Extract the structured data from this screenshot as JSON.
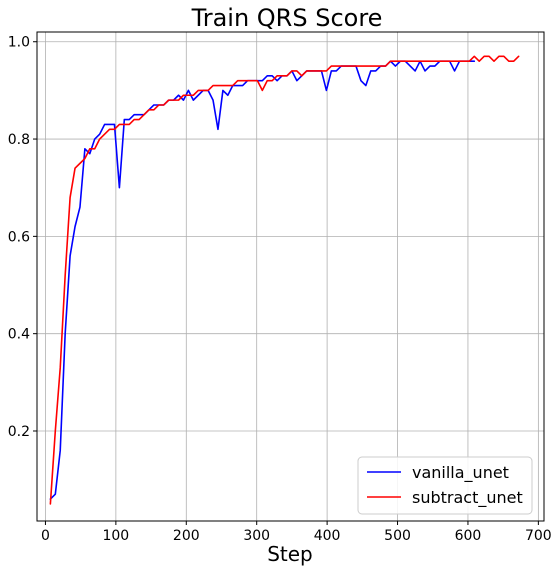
{
  "chart_data": {
    "type": "line",
    "title": "Train QRS Score",
    "xlabel": "Step",
    "ylabel": "",
    "xlim": [
      -12,
      708
    ],
    "ylim": [
      0.015,
      1.02
    ],
    "xticks": [
      0,
      100,
      200,
      300,
      400,
      500,
      600,
      700
    ],
    "yticks": [
      0.2,
      0.4,
      0.6,
      0.8,
      1.0
    ],
    "xtick_labels": [
      "0",
      "100",
      "200",
      "300",
      "400",
      "500",
      "600",
      "700"
    ],
    "ytick_labels": [
      "0.2",
      "0.4",
      "0.6",
      "0.8",
      "1.0"
    ],
    "grid": true,
    "legend_position": "lower-right",
    "series": [
      {
        "name": "vanilla_unet",
        "color": "#0000ff",
        "x": [
          7,
          14,
          21,
          28,
          35,
          42,
          49,
          56,
          63,
          70,
          77,
          84,
          91,
          98,
          105,
          112,
          119,
          126,
          133,
          140,
          147,
          154,
          161,
          168,
          175,
          182,
          189,
          196,
          203,
          210,
          217,
          224,
          231,
          238,
          245,
          252,
          259,
          266,
          273,
          280,
          287,
          294,
          301,
          308,
          315,
          322,
          329,
          336,
          343,
          350,
          357,
          364,
          371,
          378,
          385,
          392,
          399,
          406,
          413,
          420,
          427,
          434,
          441,
          448,
          455,
          462,
          469,
          476,
          483,
          490,
          497,
          504,
          511,
          518,
          525,
          532,
          539,
          546,
          553,
          560,
          567,
          574,
          581,
          588,
          595,
          602,
          609
        ],
        "y": [
          0.06,
          0.07,
          0.16,
          0.4,
          0.56,
          0.62,
          0.66,
          0.78,
          0.77,
          0.8,
          0.81,
          0.83,
          0.83,
          0.83,
          0.7,
          0.84,
          0.84,
          0.85,
          0.85,
          0.85,
          0.86,
          0.87,
          0.87,
          0.87,
          0.88,
          0.88,
          0.89,
          0.88,
          0.9,
          0.88,
          0.89,
          0.9,
          0.9,
          0.88,
          0.82,
          0.9,
          0.89,
          0.91,
          0.91,
          0.91,
          0.92,
          0.92,
          0.92,
          0.92,
          0.93,
          0.93,
          0.92,
          0.93,
          0.93,
          0.94,
          0.92,
          0.93,
          0.94,
          0.94,
          0.94,
          0.94,
          0.9,
          0.94,
          0.94,
          0.95,
          0.95,
          0.95,
          0.95,
          0.92,
          0.91,
          0.94,
          0.94,
          0.95,
          0.95,
          0.96,
          0.95,
          0.96,
          0.96,
          0.95,
          0.94,
          0.96,
          0.94,
          0.95,
          0.95,
          0.96,
          0.96,
          0.96,
          0.94,
          0.96,
          0.96,
          0.96,
          0.96
        ]
      },
      {
        "name": "subtract_unet",
        "color": "#ff0000",
        "x": [
          7,
          14,
          21,
          28,
          35,
          42,
          49,
          56,
          63,
          70,
          77,
          84,
          91,
          98,
          105,
          112,
          119,
          126,
          133,
          140,
          147,
          154,
          161,
          168,
          175,
          182,
          189,
          196,
          203,
          210,
          217,
          224,
          231,
          238,
          245,
          252,
          259,
          266,
          273,
          280,
          287,
          294,
          301,
          308,
          315,
          322,
          329,
          336,
          343,
          350,
          357,
          364,
          371,
          378,
          385,
          392,
          399,
          406,
          413,
          420,
          427,
          434,
          441,
          448,
          455,
          462,
          469,
          476,
          483,
          490,
          497,
          504,
          511,
          518,
          525,
          532,
          539,
          546,
          553,
          560,
          567,
          574,
          581,
          588,
          595,
          602,
          609,
          616,
          623,
          630,
          637,
          644,
          651,
          658,
          665,
          672
        ],
        "y": [
          0.05,
          0.2,
          0.33,
          0.52,
          0.68,
          0.74,
          0.75,
          0.76,
          0.78,
          0.78,
          0.8,
          0.81,
          0.82,
          0.82,
          0.83,
          0.83,
          0.83,
          0.84,
          0.84,
          0.85,
          0.86,
          0.86,
          0.87,
          0.87,
          0.88,
          0.88,
          0.88,
          0.89,
          0.89,
          0.89,
          0.9,
          0.9,
          0.9,
          0.91,
          0.91,
          0.91,
          0.91,
          0.91,
          0.92,
          0.92,
          0.92,
          0.92,
          0.92,
          0.9,
          0.92,
          0.92,
          0.93,
          0.93,
          0.93,
          0.94,
          0.94,
          0.93,
          0.94,
          0.94,
          0.94,
          0.94,
          0.94,
          0.95,
          0.95,
          0.95,
          0.95,
          0.95,
          0.95,
          0.95,
          0.95,
          0.95,
          0.95,
          0.95,
          0.95,
          0.96,
          0.96,
          0.96,
          0.96,
          0.96,
          0.96,
          0.96,
          0.96,
          0.96,
          0.96,
          0.96,
          0.96,
          0.96,
          0.96,
          0.96,
          0.96,
          0.96,
          0.97,
          0.96,
          0.97,
          0.97,
          0.96,
          0.97,
          0.97,
          0.96,
          0.96,
          0.97
        ]
      }
    ]
  }
}
